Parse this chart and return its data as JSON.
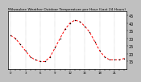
{
  "title": "Milwaukee Weather Outdoor Temperature per Hour (Last 24 Hours)",
  "hours": [
    0,
    1,
    2,
    3,
    4,
    5,
    6,
    7,
    8,
    9,
    10,
    11,
    12,
    13,
    14,
    15,
    16,
    17,
    18,
    19,
    20,
    21,
    22,
    23
  ],
  "temps": [
    32,
    30,
    26,
    22,
    18,
    16,
    15,
    15,
    18,
    24,
    30,
    36,
    40,
    42,
    41,
    38,
    34,
    28,
    22,
    18,
    16,
    16,
    16,
    17
  ],
  "line_color": "#ff0000",
  "marker_color": "#000000",
  "bg_color": "#c0c0c0",
  "plot_bg_color": "#ffffff",
  "grid_color": "#888888",
  "ylim": [
    10,
    48
  ],
  "ytick_values": [
    15,
    20,
    25,
    30,
    35,
    40,
    45
  ],
  "ytick_labels": [
    "15",
    "20",
    "25",
    "30",
    "35",
    "40",
    "45"
  ],
  "ylabel_fontsize": 3.5,
  "title_fontsize": 3.2,
  "tick_fontsize": 2.8,
  "line_width": 0.7,
  "marker_size": 1.5
}
